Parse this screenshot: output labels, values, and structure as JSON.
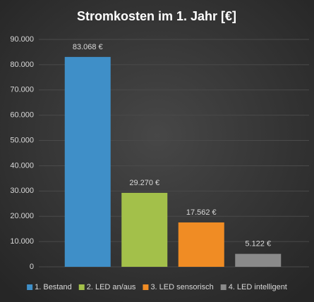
{
  "chart_data": {
    "type": "bar",
    "title": "Stromkosten im 1. Jahr [€]",
    "categories": [
      "1. Bestand",
      "2. LED an/aus",
      "3. LED sensorisch",
      "4. LED intelligent"
    ],
    "values": [
      83068,
      29270,
      17562,
      5122
    ],
    "value_labels": [
      "83.068 €",
      "29.270 €",
      "17.562 €",
      "5.122 €"
    ],
    "colors": [
      "#3f8fc8",
      "#a3c04a",
      "#f08c24",
      "#8a8a8a"
    ],
    "ylim": [
      0,
      90000
    ],
    "yticks": [
      0,
      {
        "value": 10000,
        "label": "10.000"
      },
      {
        "value": 20000,
        "label": "20.000"
      },
      {
        "value": 30000,
        "label": "30.000"
      },
      {
        "value": 40000,
        "label": "40.000"
      },
      {
        "value": 50000,
        "label": "50.000"
      },
      {
        "value": 60000,
        "label": "60.000"
      },
      {
        "value": 70000,
        "label": "70.000"
      },
      {
        "value": 80000,
        "label": "80.000"
      },
      {
        "value": 90000,
        "label": "90.000"
      }
    ],
    "grid": true,
    "legend": "bottom"
  }
}
